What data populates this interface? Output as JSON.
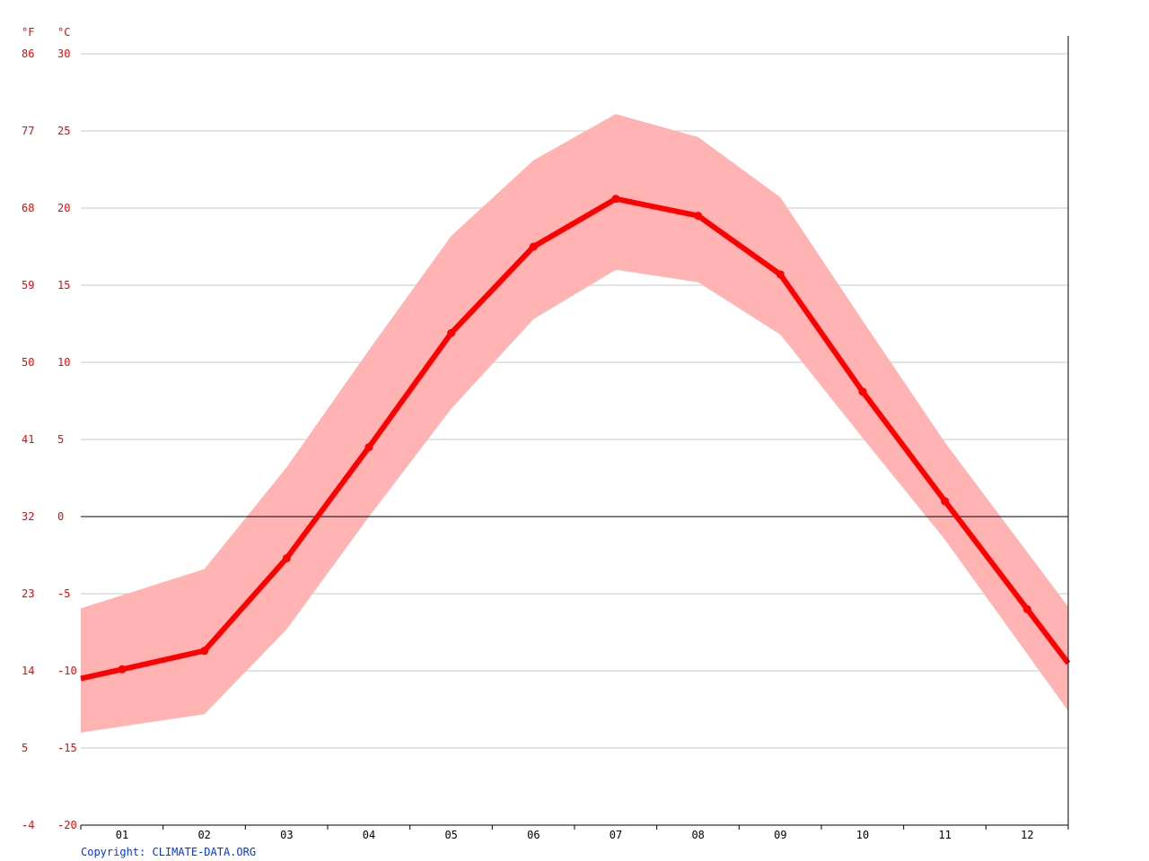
{
  "chart_data": {
    "type": "line",
    "units": {
      "fahrenheit": "°F",
      "celsius": "°C"
    },
    "categories": [
      "01",
      "02",
      "03",
      "04",
      "05",
      "06",
      "07",
      "08",
      "09",
      "10",
      "11",
      "12"
    ],
    "ylim": [
      -20,
      30
    ],
    "yticks_c": [
      "30",
      "25",
      "20",
      "15",
      "10",
      "5",
      "0",
      "-5",
      "-10",
      "-15",
      "-20"
    ],
    "yticks_f": [
      "86",
      "77",
      "68",
      "59",
      "50",
      "41",
      "32",
      "23",
      "14",
      "5",
      "-4"
    ],
    "grid": true,
    "series": [
      {
        "kind": "mean",
        "values": [
          -9.9,
          -8.7,
          -2.7,
          4.5,
          11.9,
          17.5,
          20.6,
          19.5,
          15.7,
          8.1,
          1.0,
          -6.0
        ]
      },
      {
        "kind": "max",
        "values": [
          -5.1,
          -3.4,
          3.2,
          10.8,
          18.2,
          23.1,
          26.1,
          24.6,
          20.7,
          12.7,
          4.8,
          -2.3
        ]
      },
      {
        "kind": "min",
        "values": [
          -13.6,
          -12.8,
          -7.3,
          0.0,
          7.0,
          12.8,
          16.0,
          15.2,
          11.8,
          5.1,
          -1.5,
          -8.9
        ]
      }
    ],
    "colors": {
      "line": "#ff0000",
      "band": "#ffb3b3",
      "grid": "#c8c8c8",
      "axis": "#000000",
      "labels": "#ff0000"
    }
  },
  "footer": {
    "copyright": "Copyright: CLIMATE-DATA.ORG"
  }
}
